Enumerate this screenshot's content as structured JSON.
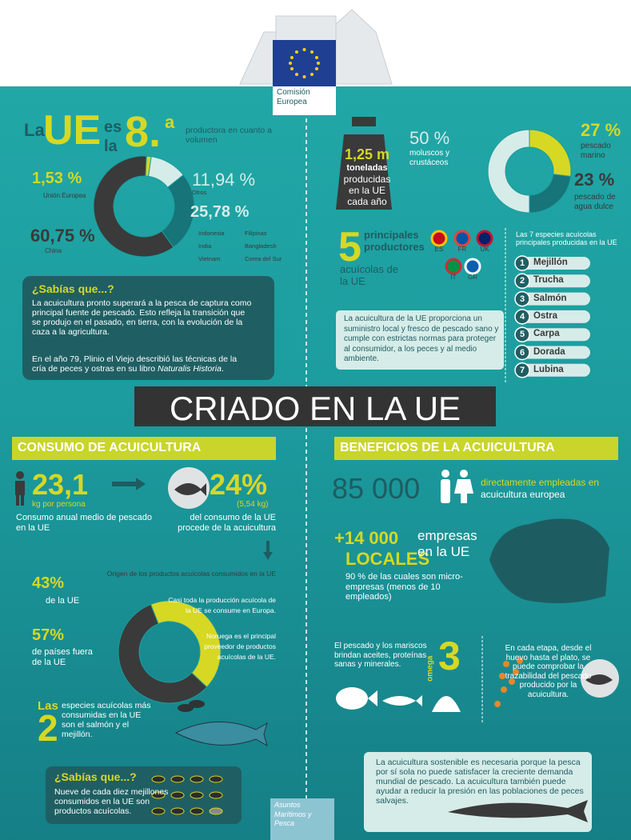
{
  "header": {
    "logo": "Comisión Europea"
  },
  "ranking": {
    "la1": "La",
    "ue": "UE",
    "es": "es",
    "la2": "la",
    "rank": "8.",
    "rank_suffix": "a",
    "text": "productora en cuanto a volumen"
  },
  "producers": {
    "slices": [
      {
        "value": 1.53,
        "label": "1,53 %",
        "name": "Unión Europea"
      },
      {
        "value": 11.94,
        "label": "11,94 %",
        "name": "Otros"
      },
      {
        "value": 25.78,
        "label": "25,78 %",
        "countries": [
          "Indonesia",
          "Filipinas",
          "India",
          "Bangladesh",
          "Vietnam",
          "Corea del Sur"
        ]
      },
      {
        "value": 60.75,
        "label": "60,75 %",
        "name": "China"
      }
    ]
  },
  "did_you_know_1": {
    "title": "¿Sabías que...?",
    "p1": "La acuicultura pronto superará a la pesca de captura como principal fuente de pescado. Esto refleja la transición que se produjo en el pasado, en tierra,  con la evolución de la caza a la agricultura.",
    "p2": "En el año 79, Plinio el Viejo describió las técnicas de la cría de peces y ostras en su libro ",
    "p2_italic": "Naturalis Historia",
    "p2_end": "."
  },
  "production": {
    "amount": "1,25 m",
    "unit": "toneladas",
    "text": "producidas en la UE cada año",
    "slices": [
      {
        "value": 27,
        "label": "27 %",
        "name": "pescado marino"
      },
      {
        "value": 23,
        "label": "23 %",
        "name": "pescado de agua dulce"
      },
      {
        "value": 50,
        "label": "50 %",
        "name": "moluscos y crustáceos"
      }
    ]
  },
  "top_producers": {
    "number": "5",
    "title": "principales productores",
    "subtitle": "acuícolas de la UE",
    "countries": [
      "ES",
      "FR",
      "UK",
      "IT",
      "GR"
    ]
  },
  "species": {
    "title": "Las 7 especies acuícolas principales producidas en la UE",
    "items": [
      {
        "rank": "1",
        "name": "Mejillón"
      },
      {
        "rank": "2",
        "name": "Trucha"
      },
      {
        "rank": "3",
        "name": "Salmón"
      },
      {
        "rank": "4",
        "name": "Ostra"
      },
      {
        "rank": "5",
        "name": "Carpa"
      },
      {
        "rank": "6",
        "name": "Dorada"
      },
      {
        "rank": "7",
        "name": "Lubina"
      }
    ]
  },
  "quality_note": "La acuicultura de la UE proporciona un suministro local y fresco de pescado sano y cumple con estrictas normas para proteger al consumidor, a los peces y al medio ambiente.",
  "banner": "CRIADO EN LA UE",
  "consumption": {
    "title": "CONSUMO DE ACUICULTURA",
    "per_capita": "23,1",
    "per_capita_unit": "kg por persona",
    "per_capita_text": "Consumo anual medio de pescado en la UE",
    "share": "24%",
    "share_kg": "(5,54 kg)",
    "share_text": "del consumo de la UE procede de la acuicultura",
    "origin": {
      "title": "Origen de los productos acuícolas consumidos en la UE",
      "slices": [
        {
          "value": 43,
          "label": "43%",
          "name": "de la UE"
        },
        {
          "value": 57,
          "label": "57%",
          "name": "de países fuera de la UE"
        }
      ],
      "note1": "Casi toda la producción acuícola de la UE se consume en Europa.",
      "note2": "Noruega es el principal proveedor de productos acuícolas de la UE."
    },
    "top_species": {
      "las": "Las",
      "number": "2",
      "text": "especies acuícolas más consumidas en la UE son el salmón y el mejillón."
    }
  },
  "did_you_know_2": {
    "title": "¿Sabías que...?",
    "text": "Nueve de cada diez mejillones consumidos en la UE son productos acuícolas."
  },
  "footer": "Asuntos Marítimos y Pesca",
  "benefits": {
    "title": "BENEFICIOS DE LA ACUICULTURA",
    "jobs": "85 000",
    "jobs_text1": "directamente empleadas en",
    "jobs_text2": "acuicultura europea",
    "companies": "+14 000",
    "companies_local": "LOCALES",
    "companies_text": "empresas en la UE",
    "companies_note": "90 % de las cuales son micro-empresas (menos de 10 empleados)",
    "nutrition": "El pescado y los mariscos brindan aceites, proteínas sanas y minerales.",
    "omega": "omega",
    "omega_number": "3",
    "traceability": "En cada etapa, desde el huevo hasta el plato, se puede comprobar la trazabilidad del pescado producido por la acuicultura.",
    "sustainability": "La acuicultura sostenible es necesaria porque la pesca por sí sola no puede satisfacer la creciente demanda mundial de pescado. La acuicultura también puede ayudar a reducir la presión en las poblaciones de peces salvajes."
  }
}
